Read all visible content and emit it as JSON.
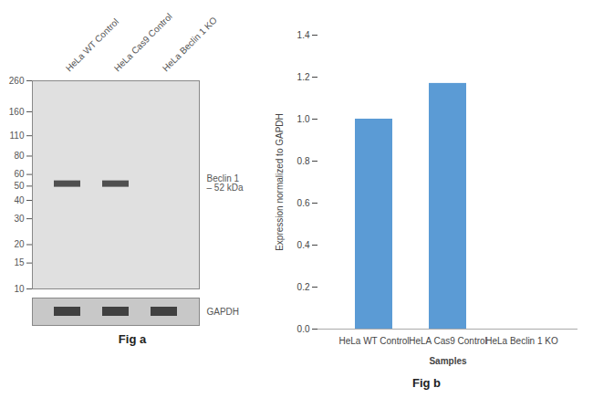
{
  "chart_data": [
    {
      "type": "blot",
      "title": "Fig a",
      "categories": [
        "HeLa WT Control",
        "HeLa Cas9 Control",
        "HeLa Beclin 1 KO"
      ],
      "log": "y",
      "ylim": [
        10,
        260
      ],
      "yticks": [
        260,
        160,
        110,
        80,
        60,
        50,
        40,
        30,
        20,
        15,
        10
      ],
      "band_kda": 52,
      "bands": [
        {
          "name": "Beclin 1",
          "present": [
            true,
            true,
            false
          ]
        },
        {
          "name": "GAPDH",
          "present": [
            true,
            true,
            true
          ]
        }
      ],
      "annotations": [
        "– 52 kDa"
      ]
    },
    {
      "type": "bar",
      "title": "Fig b",
      "categories": [
        "HeLa WT Control",
        "HeLA Cas9 Control",
        "HeLa Beclin 1 KO"
      ],
      "values": [
        1.0,
        1.17,
        0.0
      ],
      "color": "#5b9bd5",
      "xlabel": "Samples",
      "ylabel": "Expression normalized to GAPDH",
      "ylim": [
        0,
        1.4
      ],
      "yticks": [
        {
          "value": 0,
          "label": "0.0"
        },
        0.2,
        0.4,
        0.6,
        0.8,
        {
          "value": 1,
          "label": "1.0"
        },
        1.2,
        1.4
      ],
      "grid": false
    }
  ]
}
